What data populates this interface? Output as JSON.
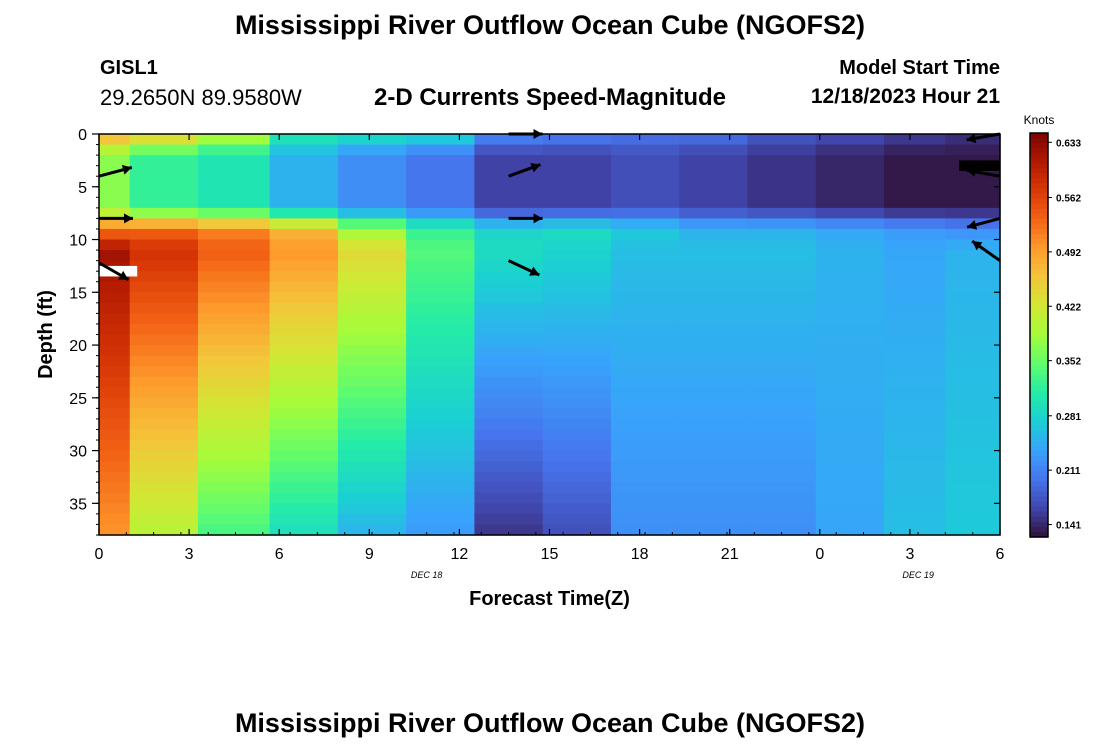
{
  "header": {
    "title": "Mississippi River Outflow Ocean Cube (NGOFS2)",
    "station": "GISL1",
    "coordinates": "29.2650N  89.9580W",
    "subtitle": "2-D Currents Speed-Magnitude",
    "model_start_label": "Model Start Time",
    "model_start_value": "12/18/2023 Hour 21"
  },
  "footer": {
    "title": "Mississippi River Outflow Ocean Cube (NGOFS2)"
  },
  "chart_data": {
    "type": "heatmap",
    "title": "2-D Currents Speed-Magnitude",
    "xlabel": "Forecast Time(Z)",
    "ylabel": "Depth (ft)",
    "x_range_hours": [
      0,
      33
    ],
    "x_tick_labels": [
      "0",
      "3",
      "6",
      "9",
      "12",
      "15",
      "18",
      "21",
      "0",
      "3",
      "6"
    ],
    "date_labels": [
      {
        "text": "DEC 18",
        "at_hour": 12
      },
      {
        "text": "DEC 19",
        "at_hour": 30
      }
    ],
    "y_range_ft": [
      0,
      38
    ],
    "y_tick_labels": [
      "0",
      "5",
      "10",
      "15",
      "20",
      "25",
      "30",
      "35"
    ],
    "colorbar": {
      "label": "Knots",
      "ticks": [
        "0.633",
        "0.562",
        "0.492",
        "0.422",
        "0.352",
        "0.281",
        "0.211",
        "0.141"
      ],
      "min": 0.125,
      "max": 0.645,
      "colors": [
        "#30123b",
        "#4145ab",
        "#4675ed",
        "#39a2fc",
        "#1bcfd4",
        "#24eca6",
        "#61fc6c",
        "#a4fc3b",
        "#d1e834",
        "#f3c63a",
        "#fe9b2d",
        "#f36315",
        "#d93806",
        "#b11901",
        "#7a0403"
      ]
    },
    "columns": [
      {
        "hour": 0.0,
        "surface": 0.49,
        "upper": 0.37,
        "jet": 0.52,
        "deep_top": 0.62,
        "deep_bottom": 0.5
      },
      {
        "hour": 2.25,
        "surface": 0.47,
        "upper": 0.32,
        "jet": 0.53,
        "deep_top": 0.58,
        "deep_bottom": 0.4
      },
      {
        "hour": 5.0,
        "surface": 0.41,
        "upper": 0.3,
        "jet": 0.51,
        "deep_top": 0.54,
        "deep_bottom": 0.33
      },
      {
        "hour": 7.5,
        "surface": 0.31,
        "upper": 0.25,
        "jet": 0.47,
        "deep_top": 0.5,
        "deep_bottom": 0.29
      },
      {
        "hour": 10.0,
        "surface": 0.3,
        "upper": 0.22,
        "jet": 0.38,
        "deep_top": 0.44,
        "deep_bottom": 0.25
      },
      {
        "hour": 12.5,
        "surface": 0.29,
        "upper": 0.2,
        "jet": 0.32,
        "deep_top": 0.34,
        "deep_bottom": 0.23
      },
      {
        "hour": 15.0,
        "surface": 0.22,
        "upper": 0.16,
        "jet": 0.28,
        "deep_top": 0.29,
        "deep_bottom": 0.15
      },
      {
        "hour": 17.5,
        "surface": 0.21,
        "upper": 0.16,
        "jet": 0.29,
        "deep_top": 0.28,
        "deep_bottom": 0.17
      },
      {
        "hour": 20.0,
        "surface": 0.2,
        "upper": 0.17,
        "jet": 0.27,
        "deep_top": 0.26,
        "deep_bottom": 0.22
      },
      {
        "hour": 22.5,
        "surface": 0.2,
        "upper": 0.16,
        "jet": 0.25,
        "deep_top": 0.26,
        "deep_bottom": 0.22
      },
      {
        "hour": 25.0,
        "surface": 0.18,
        "upper": 0.15,
        "jet": 0.25,
        "deep_top": 0.26,
        "deep_bottom": 0.22
      },
      {
        "hour": 27.5,
        "surface": 0.17,
        "upper": 0.14,
        "jet": 0.24,
        "deep_top": 0.25,
        "deep_bottom": 0.24
      },
      {
        "hour": 30.0,
        "surface": 0.16,
        "upper": 0.13,
        "jet": 0.23,
        "deep_top": 0.24,
        "deep_bottom": 0.26
      },
      {
        "hour": 32.0,
        "surface": 0.15,
        "upper": 0.13,
        "jet": 0.22,
        "deep_top": 0.25,
        "deep_bottom": 0.27
      }
    ],
    "vectors": [
      {
        "hour": 0,
        "depth_ft": 4,
        "angle_deg": 15
      },
      {
        "hour": 0,
        "depth_ft": 8,
        "angle_deg": 0
      },
      {
        "hour": 0,
        "depth_ft": 12.2,
        "angle_deg": -30
      },
      {
        "hour": 15,
        "depth_ft": 0,
        "angle_deg": 0
      },
      {
        "hour": 15,
        "depth_ft": 4,
        "angle_deg": 20
      },
      {
        "hour": 15,
        "depth_ft": 8,
        "angle_deg": 0
      },
      {
        "hour": 15,
        "depth_ft": 12,
        "angle_deg": -25
      },
      {
        "hour": 33,
        "depth_ft": 0,
        "angle_deg": 190
      },
      {
        "hour": 33,
        "depth_ft": 4,
        "angle_deg": 170
      },
      {
        "hour": 33,
        "depth_ft": 8,
        "angle_deg": 195
      },
      {
        "hour": 33,
        "depth_ft": 12,
        "angle_deg": 145
      }
    ],
    "missing_cells": [
      {
        "hour_from": 0,
        "hour_to": 1.4,
        "depth_from": 12.5,
        "depth_to": 13.5,
        "color": "#ffffff"
      },
      {
        "hour_from": 31.5,
        "hour_to": 33,
        "depth_from": 2.5,
        "depth_to": 3.5,
        "color": "#000000"
      }
    ]
  }
}
